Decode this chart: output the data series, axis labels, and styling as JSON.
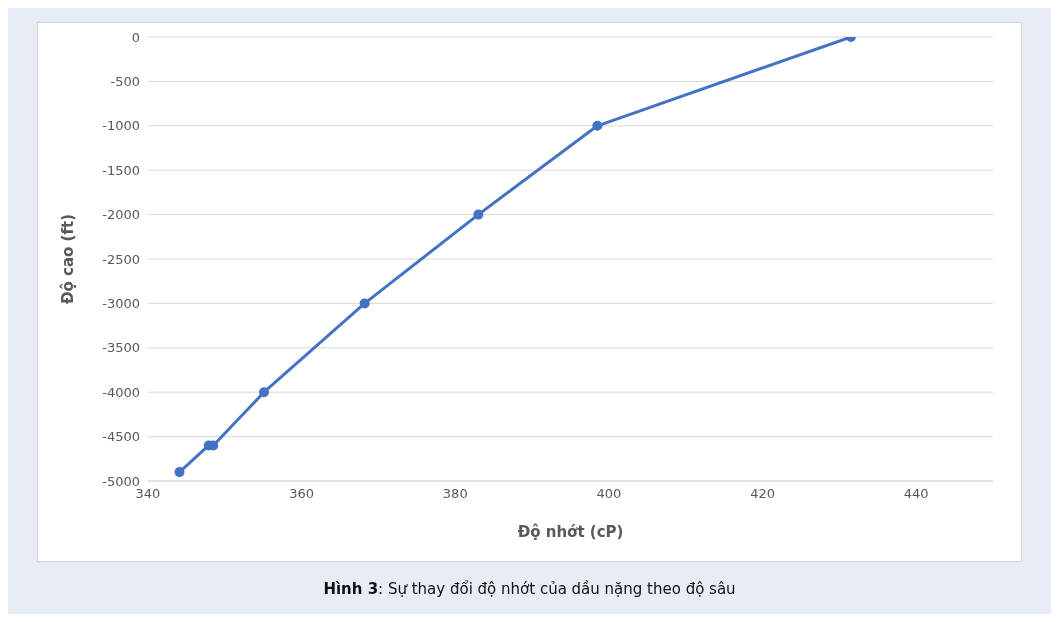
{
  "chart_data": {
    "type": "line",
    "title": "Hình 3: Sự thay đổi độ nhớt của dầu nặng theo độ sâu",
    "xlabel": "Độ nhớt (cP)",
    "ylabel": "Độ cao (ft)",
    "x": [
      344.1,
      347.9,
      348.5,
      355.1,
      368.2,
      383.0,
      398.5,
      431.5
    ],
    "series": [
      {
        "color": "#4472c4",
        "values": [
          -4900,
          -4600,
          -4600,
          -4000,
          -3000,
          -2000,
          -1000,
          0
        ]
      }
    ],
    "xlim": [
      340,
      450
    ],
    "xticks": [
      340,
      360,
      380,
      400,
      420,
      440
    ],
    "ylim": [
      -5000,
      0
    ],
    "yticks": [
      -5000,
      -4500,
      -4000,
      -3500,
      -3000,
      -2500,
      -2000,
      -1500,
      -1000,
      -500,
      0
    ],
    "grid": "y",
    "marker": "circle",
    "line_style": "solid"
  }
}
